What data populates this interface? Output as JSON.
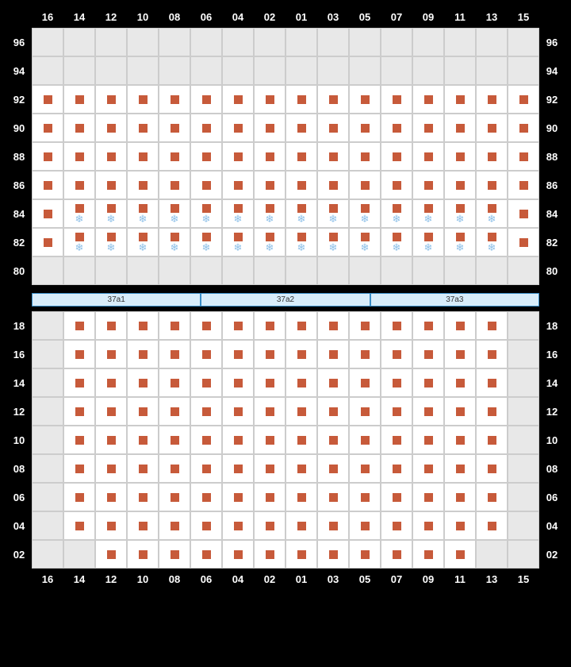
{
  "columns": [
    "16",
    "14",
    "12",
    "10",
    "08",
    "06",
    "04",
    "02",
    "01",
    "03",
    "05",
    "07",
    "09",
    "11",
    "13",
    "15"
  ],
  "upper": {
    "rows": [
      "96",
      "94",
      "92",
      "90",
      "88",
      "86",
      "84",
      "82",
      "80"
    ],
    "cells": {
      "96": [
        "E",
        "E",
        "E",
        "E",
        "E",
        "E",
        "E",
        "E",
        "E",
        "E",
        "E",
        "E",
        "E",
        "E",
        "E",
        "E"
      ],
      "94": [
        "E",
        "E",
        "E",
        "E",
        "E",
        "E",
        "E",
        "E",
        "E",
        "E",
        "E",
        "E",
        "E",
        "E",
        "E",
        "E"
      ],
      "92": [
        "S",
        "S",
        "S",
        "S",
        "S",
        "S",
        "S",
        "S",
        "S",
        "S",
        "S",
        "S",
        "S",
        "S",
        "S",
        "S"
      ],
      "90": [
        "S",
        "S",
        "S",
        "S",
        "S",
        "S",
        "S",
        "S",
        "S",
        "S",
        "S",
        "S",
        "S",
        "S",
        "S",
        "S"
      ],
      "88": [
        "S",
        "S",
        "S",
        "S",
        "S",
        "S",
        "S",
        "S",
        "S",
        "S",
        "S",
        "S",
        "S",
        "S",
        "S",
        "S"
      ],
      "86": [
        "S",
        "S",
        "S",
        "S",
        "S",
        "S",
        "S",
        "S",
        "S",
        "S",
        "S",
        "S",
        "S",
        "S",
        "S",
        "S"
      ],
      "84": [
        "S",
        "SF",
        "SF",
        "SF",
        "SF",
        "SF",
        "SF",
        "SF",
        "SF",
        "SF",
        "SF",
        "SF",
        "SF",
        "SF",
        "SF",
        "S"
      ],
      "82": [
        "S",
        "SF",
        "SF",
        "SF",
        "SF",
        "SF",
        "SF",
        "SF",
        "SF",
        "SF",
        "SF",
        "SF",
        "SF",
        "SF",
        "SF",
        "S"
      ],
      "80": [
        "E",
        "E",
        "E",
        "E",
        "E",
        "E",
        "E",
        "E",
        "E",
        "E",
        "E",
        "E",
        "E",
        "E",
        "E",
        "E"
      ]
    }
  },
  "sections": [
    "37a1",
    "37a2",
    "37a3"
  ],
  "lower": {
    "rows": [
      "18",
      "16",
      "14",
      "12",
      "10",
      "08",
      "06",
      "04",
      "02"
    ],
    "cells": {
      "18": [
        "E",
        "S",
        "S",
        "S",
        "S",
        "S",
        "S",
        "S",
        "S",
        "S",
        "S",
        "S",
        "S",
        "S",
        "S",
        "E"
      ],
      "16": [
        "E",
        "S",
        "S",
        "S",
        "S",
        "S",
        "S",
        "S",
        "S",
        "S",
        "S",
        "S",
        "S",
        "S",
        "S",
        "E"
      ],
      "14": [
        "E",
        "S",
        "S",
        "S",
        "S",
        "S",
        "S",
        "S",
        "S",
        "S",
        "S",
        "S",
        "S",
        "S",
        "S",
        "E"
      ],
      "12": [
        "E",
        "S",
        "S",
        "S",
        "S",
        "S",
        "S",
        "S",
        "S",
        "S",
        "S",
        "S",
        "S",
        "S",
        "S",
        "E"
      ],
      "10": [
        "E",
        "S",
        "S",
        "S",
        "S",
        "S",
        "S",
        "S",
        "S",
        "S",
        "S",
        "S",
        "S",
        "S",
        "S",
        "E"
      ],
      "08": [
        "E",
        "S",
        "S",
        "S",
        "S",
        "S",
        "S",
        "S",
        "S",
        "S",
        "S",
        "S",
        "S",
        "S",
        "S",
        "E"
      ],
      "06": [
        "E",
        "S",
        "S",
        "S",
        "S",
        "S",
        "S",
        "S",
        "S",
        "S",
        "S",
        "S",
        "S",
        "S",
        "S",
        "E"
      ],
      "04": [
        "E",
        "S",
        "S",
        "S",
        "S",
        "S",
        "S",
        "S",
        "S",
        "S",
        "S",
        "S",
        "S",
        "S",
        "S",
        "E"
      ],
      "02": [
        "E",
        "E",
        "S",
        "S",
        "S",
        "S",
        "S",
        "S",
        "S",
        "S",
        "S",
        "S",
        "S",
        "S",
        "E",
        "E"
      ]
    }
  },
  "colors": {
    "seat": "#c75a3a",
    "snowflake": "#8bbfe8",
    "empty": "#e8e8e8",
    "section_bg": "#d8edfa",
    "section_border": "#3a8ec7"
  },
  "glyphs": {
    "snowflake": "❄"
  }
}
